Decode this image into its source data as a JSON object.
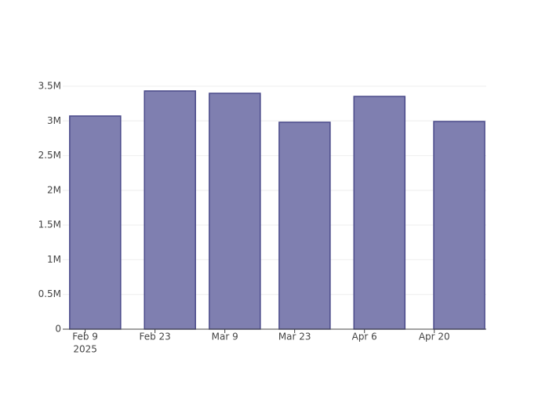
{
  "chart_data": {
    "type": "bar",
    "x": [
      "2025-02-11",
      "2025-02-26",
      "2025-03-11",
      "2025-03-25",
      "2025-04-09",
      "2025-04-25"
    ],
    "values": [
      3071000,
      3432000,
      3398000,
      2981000,
      3353000,
      2992000
    ],
    "color": "#7f7fb0",
    "edge_color": "#4a4a8a",
    "xlim": [
      "2025-02-04T12:00:00",
      "2025-04-30T10:00:00"
    ],
    "xticks": [
      {
        "value": "2025-02-09",
        "label": "Feb 9"
      },
      {
        "value": "2025-02-23",
        "label": "Feb 23"
      },
      {
        "value": "2025-03-09",
        "label": "Mar 9"
      },
      {
        "value": "2025-03-23",
        "label": "Mar 23"
      },
      {
        "value": "2025-04-06",
        "label": "Apr 6"
      },
      {
        "value": "2025-04-20",
        "label": "Apr 20"
      }
    ],
    "x_year": "2025",
    "ylim": [
      0,
      3613000
    ],
    "yticks": [
      0,
      {
        "value": 500000,
        "label": "0.5M"
      },
      {
        "value": 1000000,
        "label": "1M"
      },
      {
        "value": 1500000,
        "label": "1.5M"
      },
      {
        "value": 2000000,
        "label": "2M"
      },
      {
        "value": 2500000,
        "label": "2.5M"
      },
      {
        "value": 3000000,
        "label": "3M"
      },
      {
        "value": 3500000,
        "label": "3.5M"
      }
    ],
    "grid": true
  }
}
